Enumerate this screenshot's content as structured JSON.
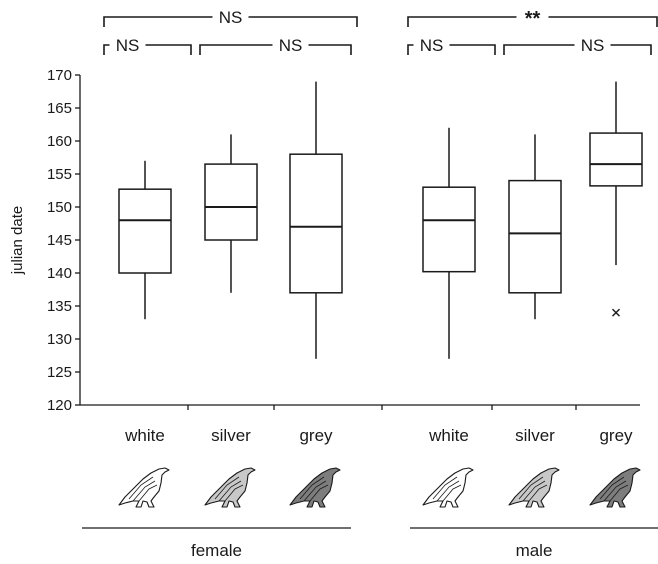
{
  "chart_data": {
    "type": "box",
    "ylabel": "julian date",
    "ylim": [
      120,
      170
    ],
    "yticks": [
      120,
      125,
      130,
      135,
      140,
      145,
      150,
      155,
      160,
      165,
      170
    ],
    "groups": [
      {
        "name": "female",
        "boxes": [
          {
            "category": "white",
            "whisker_low": 133,
            "q1": 140,
            "median": 148,
            "q3": 152.7,
            "whisker_high": 157,
            "fill": "#ffffff"
          },
          {
            "category": "silver",
            "whisker_low": 137,
            "q1": 145,
            "median": 150,
            "q3": 156.5,
            "whisker_high": 161,
            "fill": "#c8c8c8"
          },
          {
            "category": "grey",
            "whisker_low": 127,
            "q1": 137,
            "median": 147,
            "q3": 158,
            "whisker_high": 169,
            "fill": "#7d7d7d"
          }
        ]
      },
      {
        "name": "male",
        "boxes": [
          {
            "category": "white",
            "whisker_low": 127,
            "q1": 140.2,
            "median": 148,
            "q3": 153,
            "whisker_high": 162,
            "fill": "#ffffff"
          },
          {
            "category": "silver",
            "whisker_low": 133,
            "q1": 137,
            "median": 146,
            "q3": 154,
            "whisker_high": 161,
            "fill": "#c8c8c8"
          },
          {
            "category": "grey",
            "whisker_low": 141.2,
            "q1": 153.2,
            "median": 156.5,
            "q3": 161.2,
            "whisker_high": 169,
            "fill": "#7d7d7d",
            "outliers": [
              134
            ]
          }
        ]
      }
    ],
    "significance": [
      {
        "group": "female",
        "from": 0,
        "to": 2,
        "label": "NS",
        "level": "top"
      },
      {
        "group": "female",
        "from": 0,
        "to": 1,
        "label": "NS",
        "level": "lower"
      },
      {
        "group": "female",
        "from": 1,
        "to": 2,
        "label": "NS",
        "level": "lower"
      },
      {
        "group": "male",
        "from": 0,
        "to": 2,
        "label": "**",
        "level": "top"
      },
      {
        "group": "male",
        "from": 0,
        "to": 1,
        "label": "NS",
        "level": "lower"
      },
      {
        "group": "male",
        "from": 1,
        "to": 2,
        "label": "NS",
        "level": "lower"
      }
    ],
    "bird_icons": [
      "bird-icon",
      "bird-icon",
      "bird-icon",
      "bird-icon",
      "bird-icon",
      "bird-icon"
    ]
  }
}
